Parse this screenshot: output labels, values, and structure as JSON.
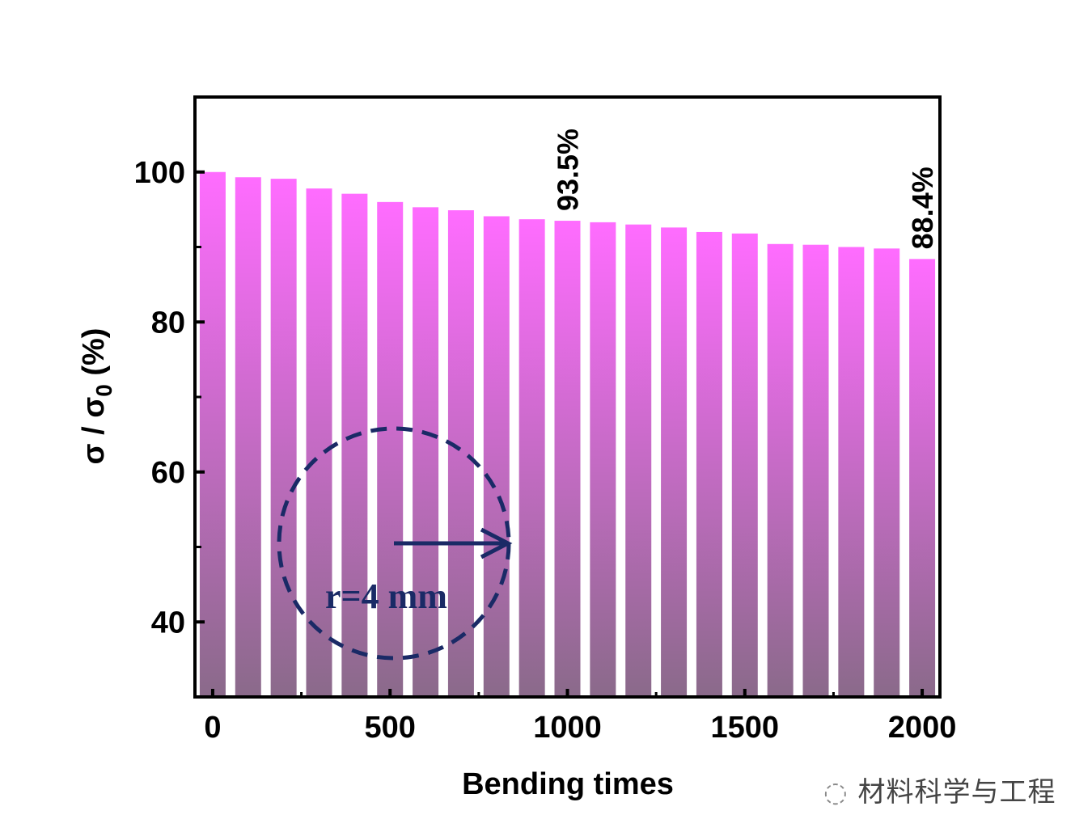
{
  "chart_data": {
    "type": "bar",
    "x": [
      0,
      100,
      200,
      300,
      400,
      500,
      600,
      700,
      800,
      900,
      1000,
      1100,
      1200,
      1300,
      1400,
      1500,
      1600,
      1700,
      1800,
      1900,
      2000
    ],
    "values": [
      100,
      99.3,
      99.1,
      97.8,
      97.1,
      96.0,
      95.3,
      94.9,
      94.1,
      93.7,
      93.5,
      93.3,
      93.0,
      92.6,
      92.0,
      91.8,
      90.4,
      90.3,
      90.0,
      89.8,
      88.4
    ],
    "xlabel": "Bending times",
    "ylabel_main": "σ / σ",
    "ylabel_sub": "0",
    "ylabel_tail": " (%)",
    "xlim": [
      -50,
      2050
    ],
    "ylim": [
      30,
      110
    ],
    "xticks": [
      0,
      500,
      1000,
      1500,
      2000
    ],
    "yticks": [
      40,
      60,
      80,
      100
    ],
    "grid": false,
    "annotations": [
      {
        "x": 1000,
        "text": "93.5%"
      },
      {
        "x": 2000,
        "text": "88.4%"
      }
    ],
    "inset_label": "r=4 mm",
    "colors": {
      "bar_top": "#ff6cff",
      "bar_bottom": "#8a6a8a",
      "inset": "#1a2a66"
    }
  },
  "watermark": "材料科学与工程"
}
